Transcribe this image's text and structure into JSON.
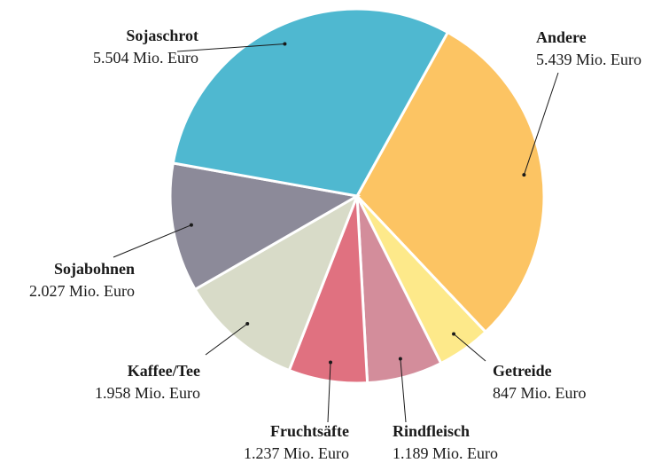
{
  "chart_data": {
    "type": "pie",
    "categories": [
      "Andere",
      "Getreide",
      "Rindfleisch",
      "Fruchtsäfte",
      "Kaffee/Tee",
      "Sojabohnen",
      "Sojaschrot"
    ],
    "values": [
      5439,
      847,
      1189,
      1237,
      1958,
      2027,
      5504
    ],
    "value_labels": [
      "5.439 Mio. Euro",
      "847 Mio. Euro",
      "1.189 Mio. Euro",
      "1.237 Mio. Euro",
      "1.958 Mio. Euro",
      "2.027 Mio. Euro",
      "5.504 Mio. Euro"
    ],
    "colors": [
      "#fcc463",
      "#fde98a",
      "#d38d9b",
      "#e07180",
      "#d8dbc8",
      "#8c8a99",
      "#4fb8d0"
    ]
  }
}
